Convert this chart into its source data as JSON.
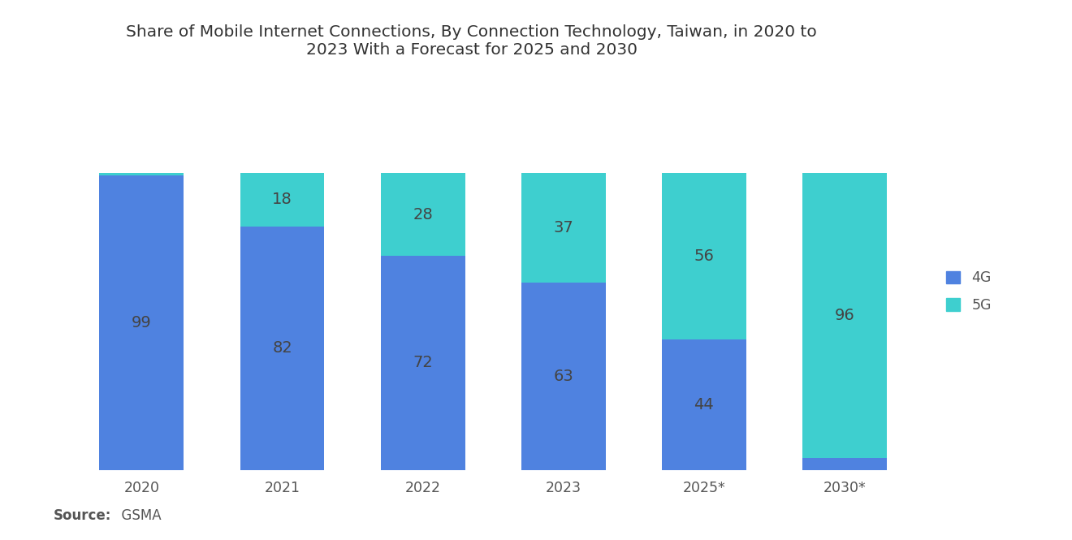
{
  "title": "Share of Mobile Internet Connections, By Connection Technology, Taiwan, in 2020 to\n2023 With a Forecast for 2025 and 2030",
  "categories": [
    "2020",
    "2021",
    "2022",
    "2023",
    "2025*",
    "2030*"
  ],
  "values_4g": [
    99,
    82,
    72,
    63,
    44,
    4
  ],
  "values_5g": [
    1,
    18,
    28,
    37,
    56,
    96
  ],
  "color_4g": "#4F82E0",
  "color_5g": "#3ECFCF",
  "label_4g": "4G",
  "label_5g": "5G",
  "label_color": "#444444",
  "source_label_bold": "Source:",
  "source_label_regular": "  GSMA",
  "background_color": "#FFFFFF",
  "title_fontsize": 14.5,
  "label_fontsize": 14,
  "tick_fontsize": 12.5,
  "source_fontsize": 12,
  "bar_width": 0.6,
  "ylim": [
    0,
    100
  ]
}
